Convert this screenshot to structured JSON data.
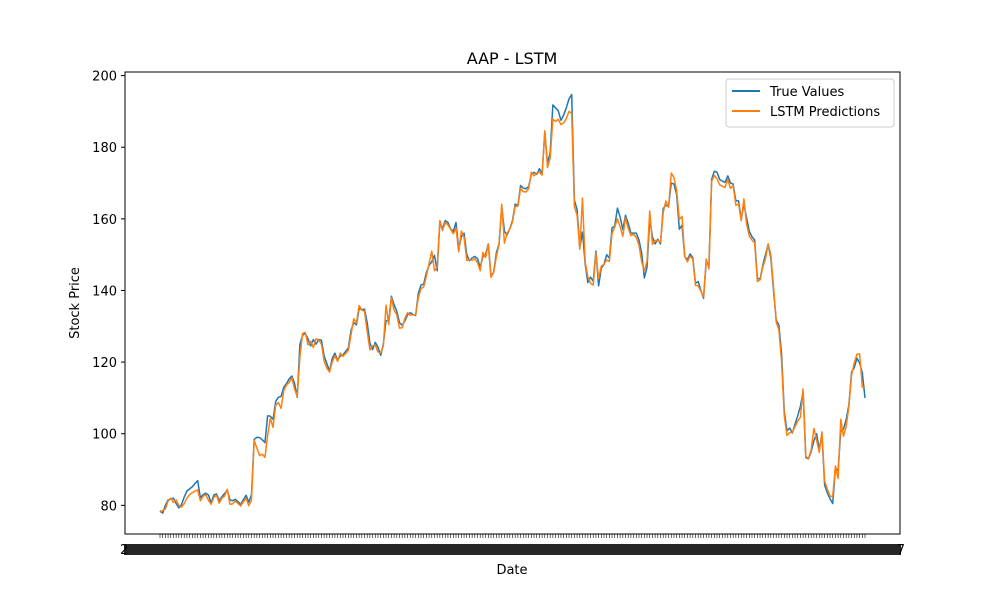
{
  "chart_data": {
    "type": "line",
    "title": "AAP - LSTM",
    "xlabel": "Date",
    "ylabel": "Stock Price",
    "ylim": [
      72,
      201
    ],
    "yticks": [
      80,
      100,
      120,
      140,
      160,
      180,
      200
    ],
    "legend_position": "top-right",
    "grid": false,
    "x_tick_labels_note_visible": "2…7",
    "x_tick_label_first": "2",
    "x_tick_label_last": "7",
    "series": [
      {
        "name": "True Values",
        "color": "#1f77b4",
        "values": [
          78.5,
          77.8,
          80,
          81.5,
          81.8,
          82,
          80.5,
          79.3,
          80.2,
          82.3,
          84,
          84.6,
          85.2,
          86.1,
          86.9,
          82.1,
          83,
          83.4,
          82.9,
          80.7,
          82.9,
          83.2,
          81.3,
          82.4,
          83.3,
          84.3,
          81.5,
          81.3,
          81.7,
          81,
          80.2,
          81.6,
          82.8,
          80.9,
          83,
          98.4,
          99,
          98.9,
          98.3,
          97.5,
          105,
          104.9,
          104,
          109,
          110.2,
          110.4,
          113,
          114,
          115.3,
          116.1,
          114.1,
          110.2,
          125,
          127.5,
          128,
          126.5,
          124.5,
          126.3,
          125,
          126.3,
          126.1,
          121.7,
          119.6,
          117.5,
          121,
          122.5,
          120.5,
          121.7,
          122,
          123,
          124,
          128.9,
          131,
          130.4,
          135,
          134.6,
          134.8,
          131,
          125.3,
          123.5,
          125.5,
          124.2,
          121.9,
          125,
          131.6,
          131.5,
          138.4,
          136,
          134.2,
          131,
          130.3,
          131.5,
          133.2,
          133.8,
          133.3,
          133,
          139.2,
          141.5,
          141.8,
          145,
          147,
          148,
          149.8,
          145.5,
          159,
          157.3,
          159.5,
          159,
          157.2,
          156.5,
          159,
          151.6,
          155,
          156,
          150,
          148.3,
          149.1,
          149.5,
          148.9,
          146.5,
          149.5,
          150,
          153,
          144.2,
          145,
          150.5,
          153,
          163.3,
          156.5,
          155.5,
          157.3,
          159.5,
          164.1,
          163.7,
          169.3,
          168.6,
          168.4,
          169,
          172.4,
          173,
          172.4,
          174,
          172.5,
          184.2,
          175.4,
          178.5,
          191.8,
          191,
          190.2,
          187.5,
          189,
          191,
          193.5,
          194.7,
          165.2,
          162.6,
          152,
          156.3,
          147.5,
          142.2,
          143.7,
          142.6,
          151,
          141.3,
          146.2,
          147.3,
          150,
          149,
          157.5,
          158,
          163,
          160.5,
          157,
          161,
          158.8,
          156,
          156,
          156,
          154.1,
          150.5,
          143.5,
          146.5,
          160,
          155,
          153,
          154.3,
          153,
          162.9,
          163.8,
          163.5,
          170,
          169.7,
          166.8,
          157.1,
          158.2,
          149.5,
          148.6,
          150.2,
          149.2,
          142,
          142.5,
          140,
          137.8,
          148,
          147,
          171,
          173.3,
          173,
          171,
          170.5,
          170.2,
          172,
          170,
          169.7,
          165,
          165,
          160,
          164.1,
          160.3,
          156.5,
          155,
          154.1,
          143.5,
          143.1,
          147,
          150,
          152.8,
          149.1,
          140,
          131.8,
          130.3,
          122.3,
          106.2,
          100.8,
          101.6,
          100.2,
          102.7,
          105,
          107.7,
          111.8,
          93.3,
          93,
          95,
          98,
          100,
          95.7,
          99.8,
          85.6,
          83.5,
          81.8,
          80.5,
          90.3,
          89.8,
          100.8,
          101.3,
          103.9,
          108,
          117.2,
          118.4,
          121.1,
          119.7,
          117,
          110
        ]
      },
      {
        "name": "LSTM Predictions",
        "color": "#ff7f0e",
        "values": [
          78,
          78.6,
          79,
          81.2,
          82,
          80.8,
          81.5,
          80,
          79.5,
          80.5,
          82,
          83,
          83.5,
          84,
          84.3,
          81.3,
          82.5,
          83,
          81.4,
          80.3,
          82.2,
          82.8,
          80.6,
          82,
          82.6,
          84.5,
          80.3,
          80.4,
          81.2,
          80.5,
          79.8,
          81,
          82,
          79.9,
          81.5,
          98.1,
          96,
          93.9,
          94.3,
          93.4,
          99.5,
          104.3,
          101.8,
          108,
          108.7,
          107.1,
          112,
          113.6,
          114.3,
          115.6,
          112.5,
          110.4,
          121.5,
          128,
          128.3,
          124.8,
          125.8,
          124.1,
          126.5,
          126.2,
          125,
          120.3,
          118.3,
          117.2,
          120,
          121.8,
          120.2,
          122.5,
          121.6,
          122.4,
          123.3,
          127.7,
          132.1,
          130.9,
          135.8,
          134.5,
          134.2,
          128.5,
          123.4,
          124.5,
          124.8,
          122.8,
          122.6,
          124.5,
          135.9,
          130.5,
          138,
          134.5,
          133.2,
          129.5,
          129.6,
          132.2,
          133.8,
          133.1,
          133.2,
          133.2,
          138,
          140.5,
          141,
          144,
          147.5,
          151,
          145.5,
          146.5,
          159.5,
          156.7,
          159,
          158.3,
          157.1,
          155.8,
          157.5,
          150.8,
          156.6,
          154.8,
          148.4,
          148.6,
          148.4,
          148.9,
          147.8,
          145.5,
          150.6,
          149.2,
          152.9,
          143.7,
          145,
          149.5,
          152.8,
          164.1,
          153.2,
          156,
          157.2,
          159.1,
          163.5,
          163.5,
          168.5,
          167.6,
          167.5,
          168.4,
          173,
          172,
          172.8,
          173,
          172.2,
          184.6,
          174.3,
          177,
          187.8,
          187.2,
          187.8,
          186.3,
          186.8,
          188,
          190,
          189.5,
          163.4,
          161,
          151.5,
          165.8,
          148,
          143.9,
          142,
          141.5,
          150.5,
          143.3,
          146.8,
          147.3,
          148.5,
          148.1,
          156,
          157.7,
          160,
          157.8,
          155.1,
          160.3,
          157.4,
          155.3,
          155.7,
          154.8,
          152.7,
          148,
          145.5,
          148.2,
          162.2,
          152.9,
          154,
          153.9,
          153.5,
          161.7,
          165,
          163.2,
          172.8,
          171.5,
          168,
          159.8,
          160.7,
          149.5,
          148,
          149.6,
          148.8,
          141.4,
          141.3,
          139.8,
          138.2,
          148.8,
          146,
          170.5,
          172.1,
          171.2,
          169.5,
          169.1,
          168.8,
          171,
          168.5,
          169.3,
          163.8,
          164.2,
          159.5,
          165.6,
          158.5,
          155.2,
          154.1,
          153.3,
          142.5,
          143,
          146.5,
          148.8,
          153,
          150,
          141.1,
          131.2,
          129,
          120,
          105,
          99.5,
          100.3,
          100.4,
          102,
          103.5,
          104.6,
          112.5,
          93.6,
          93.1,
          95.5,
          101.5,
          98.2,
          94.8,
          100.5,
          86.8,
          84.5,
          82.6,
          82.4,
          91,
          87.5,
          104,
          99.3,
          102,
          107.5,
          116.3,
          119.8,
          122.2,
          122.3,
          113,
          113.2
        ]
      }
    ]
  }
}
